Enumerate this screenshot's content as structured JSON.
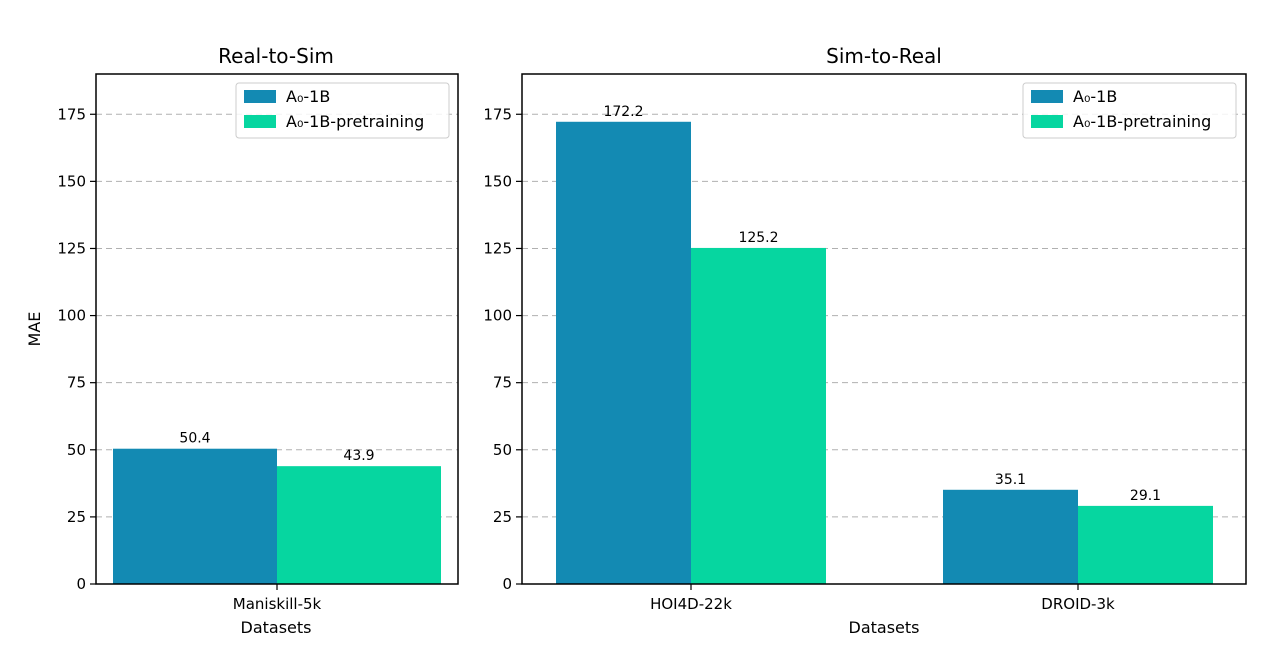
{
  "colors": {
    "series_1": "#138ab3",
    "series_2": "#06d6a0"
  },
  "chart_data": [
    {
      "type": "bar",
      "title": "Real-to-Sim",
      "xlabel": "Datasets",
      "ylabel": "MAE",
      "ylim": [
        0,
        190
      ],
      "yticks": [
        0,
        25,
        50,
        75,
        100,
        125,
        150,
        175
      ],
      "categories": [
        "Maniskill-5k"
      ],
      "series": [
        {
          "name": "A₀-1B",
          "values": [
            50.4
          ],
          "labels": [
            "50.4"
          ]
        },
        {
          "name": "A₀-1B-pretraining",
          "values": [
            43.9
          ],
          "labels": [
            "43.9"
          ]
        }
      ],
      "grid": "y-dashed",
      "legend": "top-right"
    },
    {
      "type": "bar",
      "title": "Sim-to-Real",
      "xlabel": "Datasets",
      "ylabel": "",
      "ylim": [
        0,
        190
      ],
      "yticks": [
        0,
        25,
        50,
        75,
        100,
        125,
        150,
        175
      ],
      "categories": [
        "HOI4D-22k",
        "DROID-3k"
      ],
      "series": [
        {
          "name": "A₀-1B",
          "values": [
            172.2,
            35.1
          ],
          "labels": [
            "172.2",
            "35.1"
          ]
        },
        {
          "name": "A₀-1B-pretraining",
          "values": [
            125.2,
            29.1
          ],
          "labels": [
            "125.2",
            "29.1"
          ]
        }
      ],
      "grid": "y-dashed",
      "legend": "top-right"
    }
  ]
}
